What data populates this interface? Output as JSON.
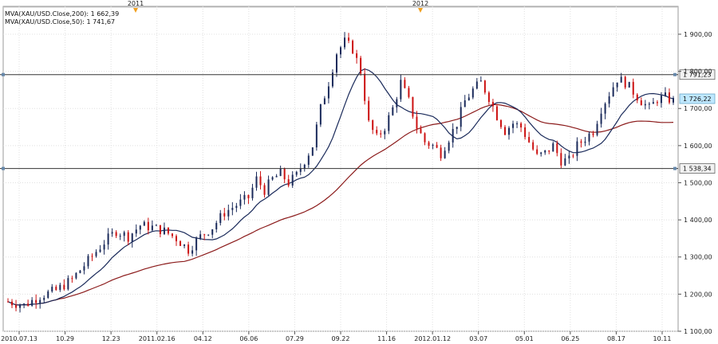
{
  "chart_data": {
    "type": "candlestick",
    "title": "",
    "legend": [
      {
        "label": "MVA(XAU/USD.Close,200): 1 662,39",
        "color": "#8b1a1a"
      },
      {
        "label": "MVA(XAU/USD.Close,50): 1 741,67",
        "color": "#1a2a5a"
      }
    ],
    "yticks": [
      "1 900,00",
      "1 800,00",
      "1 700,00",
      "1 600,00",
      "1 500,00",
      "1 400,00",
      "1 300,00",
      "1 200,00",
      "1 100,00"
    ],
    "ytick_values": [
      1900,
      1800,
      1700,
      1600,
      1500,
      1400,
      1300,
      1200,
      1100
    ],
    "ylim": [
      1100,
      1975
    ],
    "xticks": [
      "2010.07.13",
      "10.29",
      "12.23",
      "2011.02.16",
      "04.12",
      "06.06",
      "07.29",
      "09.22",
      "11.16",
      "2012.01.12",
      "03.07",
      "05.01",
      "06.25",
      "08.17",
      "10.11"
    ],
    "year_markers": [
      "2011",
      "2012"
    ],
    "horizontal_lines": [
      {
        "value": 1791.23,
        "label": "1 791,23"
      },
      {
        "value": 1538.34,
        "label": "1 538,34"
      }
    ],
    "current_price": {
      "value": 1726.22,
      "label": "1 726,22"
    },
    "colors": {
      "up": "#1a2a5a",
      "down": "#cc1111",
      "ma200": "#8b1a1a",
      "ma50": "#1a2a5a",
      "grid": "#e0e0e0",
      "hline": "#333333",
      "label_bg": "#bfe8ff"
    },
    "price_path": [
      [
        0,
        1180
      ],
      [
        4,
        1170
      ],
      [
        8,
        1195
      ],
      [
        12,
        1210
      ],
      [
        16,
        1240
      ],
      [
        20,
        1290
      ],
      [
        24,
        1340
      ],
      [
        27,
        1370
      ],
      [
        30,
        1355
      ],
      [
        33,
        1385
      ],
      [
        36,
        1380
      ],
      [
        39,
        1370
      ],
      [
        42,
        1350
      ],
      [
        45,
        1320
      ],
      [
        48,
        1355
      ],
      [
        51,
        1380
      ],
      [
        54,
        1420
      ],
      [
        57,
        1440
      ],
      [
        60,
        1460
      ],
      [
        62,
        1510
      ],
      [
        64,
        1480
      ],
      [
        66,
        1510
      ],
      [
        68,
        1525
      ],
      [
        70,
        1500
      ],
      [
        72,
        1520
      ],
      [
        74,
        1560
      ],
      [
        76,
        1600
      ],
      [
        78,
        1700
      ],
      [
        80,
        1770
      ],
      [
        82,
        1850
      ],
      [
        84,
        1880
      ],
      [
        86,
        1860
      ],
      [
        88,
        1800
      ],
      [
        90,
        1660
      ],
      [
        92,
        1620
      ],
      [
        94,
        1650
      ],
      [
        96,
        1700
      ],
      [
        98,
        1770
      ],
      [
        100,
        1720
      ],
      [
        102,
        1650
      ],
      [
        104,
        1610
      ],
      [
        106,
        1600
      ],
      [
        108,
        1580
      ],
      [
        110,
        1620
      ],
      [
        112,
        1660
      ],
      [
        114,
        1720
      ],
      [
        116,
        1750
      ],
      [
        118,
        1770
      ],
      [
        120,
        1730
      ],
      [
        122,
        1680
      ],
      [
        124,
        1640
      ],
      [
        126,
        1660
      ],
      [
        128,
        1650
      ],
      [
        130,
        1610
      ],
      [
        132,
        1570
      ],
      [
        134,
        1580
      ],
      [
        136,
        1600
      ],
      [
        138,
        1560
      ],
      [
        140,
        1560
      ],
      [
        142,
        1600
      ],
      [
        144,
        1620
      ],
      [
        146,
        1640
      ],
      [
        148,
        1700
      ],
      [
        150,
        1740
      ],
      [
        152,
        1780
      ],
      [
        154,
        1770
      ],
      [
        156,
        1745
      ],
      [
        158,
        1720
      ],
      [
        160,
        1700
      ],
      [
        162,
        1725
      ],
      [
        164,
        1730
      ],
      [
        166,
        1720
      ]
    ]
  }
}
